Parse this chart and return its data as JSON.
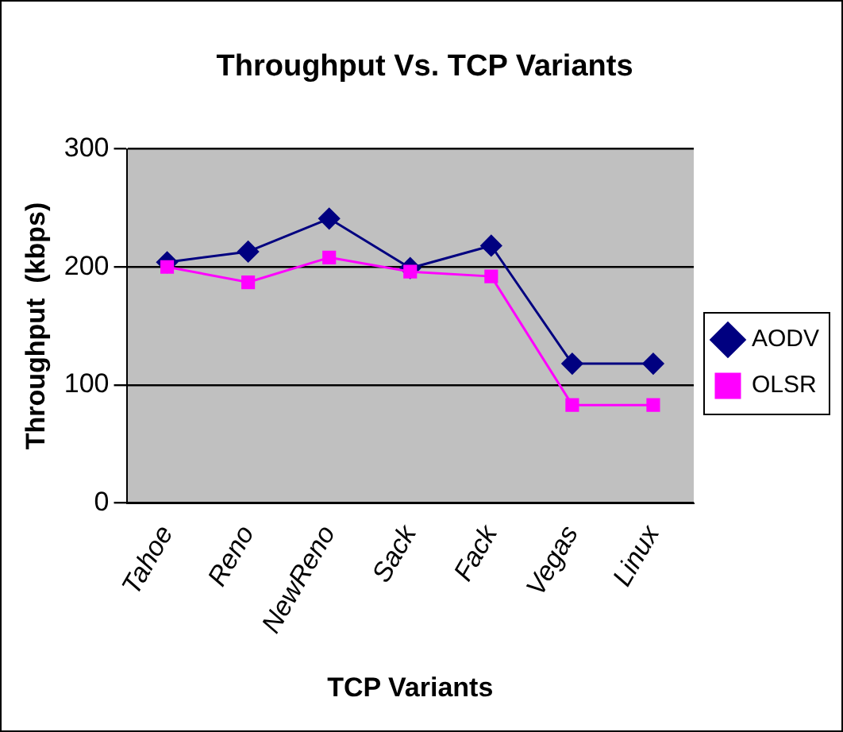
{
  "chart_data": {
    "type": "line",
    "title": "Throughput Vs. TCP Variants",
    "xlabel": "TCP Variants",
    "ylabel": "Throughput  (kbps)",
    "categories": [
      "Tahoe",
      "Reno",
      "NewReno",
      "Sack",
      "Fack",
      "Vegas",
      "Linux"
    ],
    "series": [
      {
        "name": "AODV",
        "color": "#000080",
        "marker": "diamond",
        "values": [
          204,
          213,
          241,
          199,
          218,
          118,
          118
        ]
      },
      {
        "name": "OLSR",
        "color": "#ff00ff",
        "marker": "square",
        "values": [
          200,
          187,
          208,
          196,
          192,
          83,
          83
        ]
      }
    ],
    "ylim": [
      0,
      300
    ],
    "yticks": [
      0,
      100,
      200,
      300
    ],
    "grid": "y",
    "legend": "right",
    "line_style": "solid"
  }
}
